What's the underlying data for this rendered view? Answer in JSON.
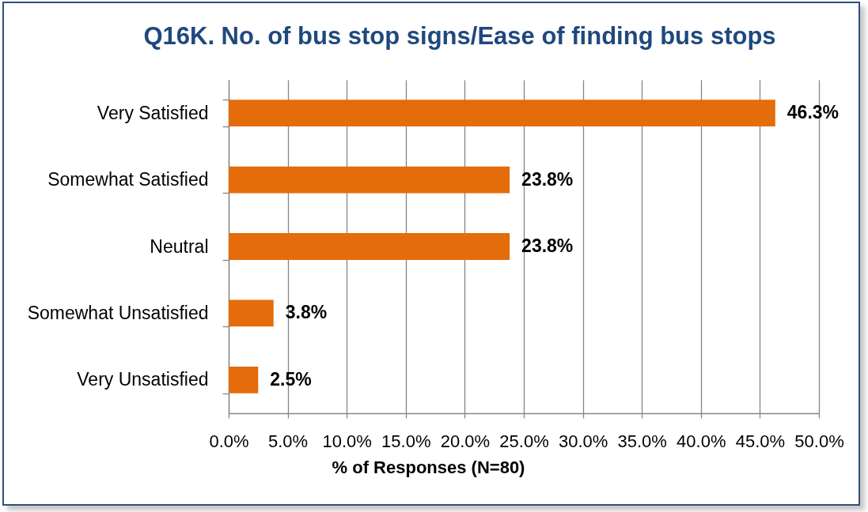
{
  "chart_data": {
    "type": "bar",
    "title": "Q16K. No. of bus stop signs/Ease of finding bus stops",
    "xlabel": "% of Responses (N=80)",
    "categories": [
      "Very Satisfied",
      "Somewhat Satisfied",
      "Neutral",
      "Somewhat Unsatisfied",
      "Very Unsatisfied"
    ],
    "values": [
      46.3,
      23.8,
      23.8,
      3.8,
      2.5
    ],
    "value_labels": [
      "46.3%",
      "23.8%",
      "23.8%",
      "3.8%",
      "2.5%"
    ],
    "color": "#e46c0a",
    "orientation": "horizontal",
    "xlim": [
      0,
      50
    ],
    "xticks": [
      {
        "value": 0,
        "label": "0.0%"
      },
      {
        "value": 5,
        "label": "5.0%"
      },
      {
        "value": 10,
        "label": "10.0%"
      },
      {
        "value": 15,
        "label": "15.0%"
      },
      {
        "value": 20,
        "label": "20.0%"
      },
      {
        "value": 25,
        "label": "25.0%"
      },
      {
        "value": 30,
        "label": "30.0%"
      },
      {
        "value": 35,
        "label": "35.0%"
      },
      {
        "value": 40,
        "label": "40.0%"
      },
      {
        "value": 45,
        "label": "45.0%"
      },
      {
        "value": 50,
        "label": "50.0%"
      }
    ],
    "grid": "x"
  }
}
